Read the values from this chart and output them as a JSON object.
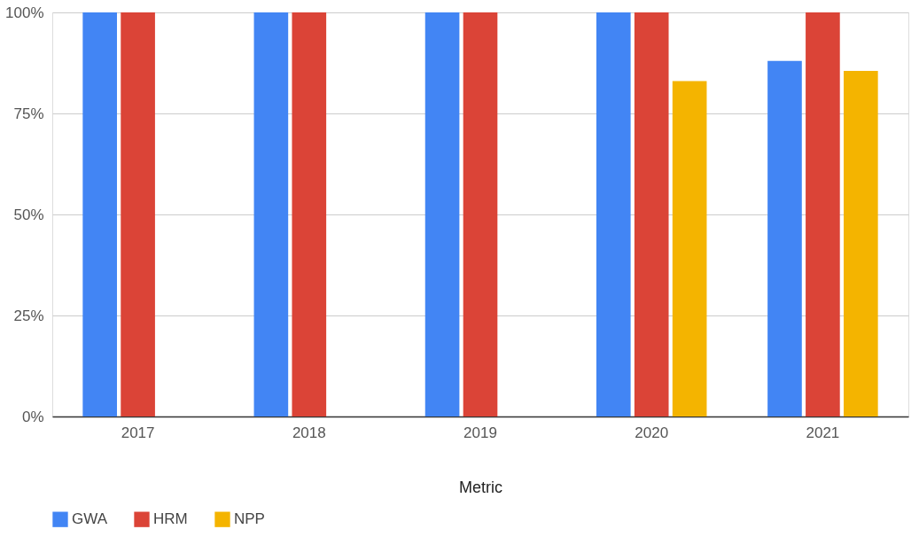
{
  "chart_data": {
    "type": "bar",
    "xlabel": "Metric",
    "categories": [
      "2017",
      "2018",
      "2019",
      "2020",
      "2021"
    ],
    "series": [
      {
        "name": "GWA",
        "color": "#4285f4",
        "values": [
          100,
          100,
          100,
          100,
          88
        ]
      },
      {
        "name": "HRM",
        "color": "#db4437",
        "values": [
          100,
          100,
          100,
          100,
          100
        ]
      },
      {
        "name": "NPP",
        "color": "#f4b400",
        "values": [
          null,
          null,
          null,
          83,
          85.5
        ]
      }
    ],
    "ylim": [
      0,
      100
    ],
    "yticks": [
      {
        "value": 0,
        "label": "0%"
      },
      {
        "value": 25,
        "label": "25%"
      },
      {
        "value": 50,
        "label": "50%"
      },
      {
        "value": 75,
        "label": "75%"
      },
      {
        "value": 100,
        "label": "100%"
      }
    ],
    "grid": "y",
    "legend": "bottom"
  }
}
